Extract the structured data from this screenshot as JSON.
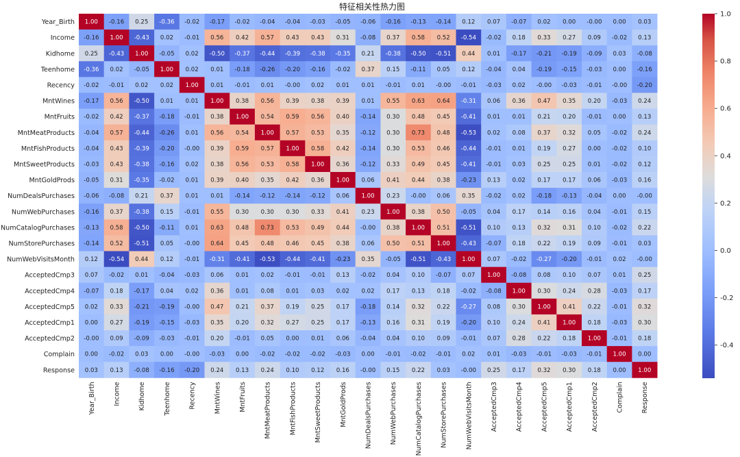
{
  "chart_data": {
    "type": "heatmap",
    "title": "特征相关性热力图",
    "labels": [
      "Year_Birth",
      "Income",
      "Kidhome",
      "Teenhome",
      "Recency",
      "MntWines",
      "MntFruits",
      "MntMeatProducts",
      "MntFishProducts",
      "MntSweetProducts",
      "MntGoldProds",
      "NumDealsPurchases",
      "NumWebPurchases",
      "NumCatalogPurchases",
      "NumStorePurchases",
      "NumWebVisitsMonth",
      "AcceptedCmp3",
      "AcceptedCmp4",
      "AcceptedCmp5",
      "AcceptedCmp1",
      "AcceptedCmp2",
      "Complain",
      "Response"
    ],
    "matrix": [
      [
        "1.00",
        "-0.16",
        "0.25",
        "-0.36",
        "-0.02",
        "-0.17",
        "-0.02",
        "-0.04",
        "-0.04",
        "-0.03",
        "-0.05",
        "-0.06",
        "-0.16",
        "-0.13",
        "-0.14",
        "0.12",
        "0.07",
        "-0.07",
        "0.02",
        "0.00",
        "-0.00",
        "0.00",
        "0.03"
      ],
      [
        "-0.16",
        "1.00",
        "-0.43",
        "0.02",
        "-0.01",
        "0.56",
        "0.42",
        "0.57",
        "0.43",
        "0.43",
        "0.31",
        "-0.08",
        "0.37",
        "0.58",
        "0.52",
        "-0.54",
        "-0.02",
        "0.18",
        "0.33",
        "0.27",
        "0.09",
        "-0.02",
        "0.13"
      ],
      [
        "0.25",
        "-0.43",
        "1.00",
        "-0.05",
        "0.02",
        "-0.50",
        "-0.37",
        "-0.44",
        "-0.39",
        "-0.38",
        "-0.35",
        "0.21",
        "-0.38",
        "-0.50",
        "-0.51",
        "0.44",
        "0.01",
        "-0.17",
        "-0.21",
        "-0.19",
        "-0.09",
        "0.03",
        "-0.08"
      ],
      [
        "-0.36",
        "0.02",
        "-0.05",
        "1.00",
        "0.02",
        "0.01",
        "-0.18",
        "-0.26",
        "-0.20",
        "-0.16",
        "-0.02",
        "0.37",
        "0.15",
        "-0.11",
        "0.05",
        "0.12",
        "-0.04",
        "0.04",
        "-0.19",
        "-0.15",
        "-0.03",
        "0.00",
        "-0.16"
      ],
      [
        "-0.02",
        "-0.01",
        "0.02",
        "0.02",
        "1.00",
        "0.01",
        "-0.01",
        "0.01",
        "-0.00",
        "0.02",
        "0.01",
        "0.01",
        "-0.01",
        "0.01",
        "-0.00",
        "-0.01",
        "-0.03",
        "0.02",
        "-0.00",
        "-0.03",
        "-0.01",
        "-0.00",
        "-0.20"
      ],
      [
        "-0.17",
        "0.56",
        "-0.50",
        "0.01",
        "0.01",
        "1.00",
        "0.38",
        "0.56",
        "0.39",
        "0.38",
        "0.39",
        "0.01",
        "0.55",
        "0.63",
        "0.64",
        "-0.31",
        "0.06",
        "0.36",
        "0.47",
        "0.35",
        "0.20",
        "-0.03",
        "0.24"
      ],
      [
        "-0.02",
        "0.42",
        "-0.37",
        "-0.18",
        "-0.01",
        "0.38",
        "1.00",
        "0.54",
        "0.59",
        "0.56",
        "0.40",
        "-0.14",
        "0.30",
        "0.48",
        "0.45",
        "-0.41",
        "0.01",
        "0.01",
        "0.21",
        "0.20",
        "-0.01",
        "0.00",
        "0.13"
      ],
      [
        "-0.04",
        "0.57",
        "-0.44",
        "-0.26",
        "0.01",
        "0.56",
        "0.54",
        "1.00",
        "0.57",
        "0.53",
        "0.35",
        "-0.12",
        "0.30",
        "0.73",
        "0.48",
        "-0.53",
        "0.02",
        "0.08",
        "0.37",
        "0.32",
        "0.05",
        "-0.02",
        "0.24"
      ],
      [
        "-0.04",
        "0.43",
        "-0.39",
        "-0.20",
        "-0.00",
        "0.39",
        "0.59",
        "0.57",
        "1.00",
        "0.58",
        "0.42",
        "-0.14",
        "0.30",
        "0.53",
        "0.46",
        "-0.44",
        "-0.01",
        "0.01",
        "0.19",
        "0.27",
        "0.00",
        "-0.02",
        "0.10"
      ],
      [
        "-0.03",
        "0.43",
        "-0.38",
        "-0.16",
        "0.02",
        "0.38",
        "0.56",
        "0.53",
        "0.58",
        "1.00",
        "0.36",
        "-0.12",
        "0.33",
        "0.49",
        "0.45",
        "-0.41",
        "-0.01",
        "0.03",
        "0.25",
        "0.25",
        "0.01",
        "-0.02",
        "0.12"
      ],
      [
        "-0.05",
        "0.31",
        "-0.35",
        "-0.02",
        "0.01",
        "0.39",
        "0.40",
        "0.35",
        "0.42",
        "0.36",
        "1.00",
        "0.06",
        "0.41",
        "0.44",
        "0.38",
        "-0.23",
        "0.13",
        "0.02",
        "0.17",
        "0.17",
        "0.06",
        "-0.03",
        "0.16"
      ],
      [
        "-0.06",
        "-0.08",
        "0.21",
        "0.37",
        "0.01",
        "0.01",
        "-0.14",
        "-0.12",
        "-0.14",
        "-0.12",
        "0.06",
        "1.00",
        "0.23",
        "-0.00",
        "0.06",
        "0.35",
        "-0.02",
        "0.02",
        "-0.18",
        "-0.13",
        "-0.04",
        "0.00",
        "-0.00"
      ],
      [
        "-0.16",
        "0.37",
        "-0.38",
        "0.15",
        "-0.01",
        "0.55",
        "0.30",
        "0.30",
        "0.30",
        "0.33",
        "0.41",
        "0.23",
        "1.00",
        "0.38",
        "0.50",
        "-0.05",
        "0.04",
        "0.17",
        "0.14",
        "0.16",
        "0.04",
        "-0.01",
        "0.15"
      ],
      [
        "-0.13",
        "0.58",
        "-0.50",
        "-0.11",
        "0.01",
        "0.63",
        "0.48",
        "0.73",
        "0.53",
        "0.49",
        "0.44",
        "-0.00",
        "0.38",
        "1.00",
        "0.51",
        "-0.51",
        "0.10",
        "0.13",
        "0.32",
        "0.31",
        "0.10",
        "-0.02",
        "0.22"
      ],
      [
        "-0.14",
        "0.52",
        "-0.51",
        "0.05",
        "-0.00",
        "0.64",
        "0.45",
        "0.48",
        "0.46",
        "0.45",
        "0.38",
        "0.06",
        "0.50",
        "0.51",
        "1.00",
        "-0.43",
        "-0.07",
        "0.18",
        "0.22",
        "0.19",
        "0.09",
        "-0.01",
        "0.03"
      ],
      [
        "0.12",
        "-0.54",
        "0.44",
        "0.12",
        "-0.01",
        "-0.31",
        "-0.41",
        "-0.53",
        "-0.44",
        "-0.41",
        "-0.23",
        "0.35",
        "-0.05",
        "-0.51",
        "-0.43",
        "1.00",
        "0.07",
        "-0.02",
        "-0.27",
        "-0.20",
        "-0.01",
        "0.02",
        "-0.00"
      ],
      [
        "0.07",
        "-0.02",
        "0.01",
        "-0.04",
        "-0.03",
        "0.06",
        "0.01",
        "0.02",
        "-0.01",
        "-0.01",
        "0.13",
        "-0.02",
        "0.04",
        "0.10",
        "-0.07",
        "0.07",
        "1.00",
        "-0.08",
        "0.08",
        "0.10",
        "0.07",
        "0.01",
        "0.25"
      ],
      [
        "-0.07",
        "0.18",
        "-0.17",
        "0.04",
        "0.02",
        "0.36",
        "0.01",
        "0.08",
        "0.01",
        "0.03",
        "0.02",
        "0.02",
        "0.17",
        "0.13",
        "0.18",
        "-0.02",
        "-0.08",
        "1.00",
        "0.30",
        "0.24",
        "0.28",
        "-0.03",
        "0.17"
      ],
      [
        "0.02",
        "0.33",
        "-0.21",
        "-0.19",
        "-0.00",
        "0.47",
        "0.21",
        "0.37",
        "0.19",
        "0.25",
        "0.17",
        "-0.18",
        "0.14",
        "0.32",
        "0.22",
        "-0.27",
        "0.08",
        "0.30",
        "1.00",
        "0.41",
        "0.22",
        "-0.01",
        "0.32"
      ],
      [
        "0.00",
        "0.27",
        "-0.19",
        "-0.15",
        "-0.03",
        "0.35",
        "0.20",
        "0.32",
        "0.27",
        "0.25",
        "0.17",
        "-0.13",
        "0.16",
        "0.31",
        "0.19",
        "-0.20",
        "0.10",
        "0.24",
        "0.41",
        "1.00",
        "0.18",
        "-0.03",
        "0.30"
      ],
      [
        "-0.00",
        "0.09",
        "-0.09",
        "-0.03",
        "-0.01",
        "0.20",
        "-0.01",
        "0.05",
        "0.00",
        "0.01",
        "0.06",
        "-0.04",
        "0.04",
        "0.10",
        "0.09",
        "-0.01",
        "0.07",
        "0.28",
        "0.22",
        "0.18",
        "1.00",
        "-0.01",
        "0.18"
      ],
      [
        "0.00",
        "-0.02",
        "0.03",
        "0.00",
        "-0.00",
        "-0.03",
        "0.00",
        "-0.02",
        "-0.02",
        "-0.02",
        "-0.03",
        "0.00",
        "-0.01",
        "-0.02",
        "-0.01",
        "0.02",
        "0.01",
        "-0.03",
        "-0.01",
        "-0.03",
        "-0.01",
        "1.00",
        "0.00"
      ],
      [
        "0.03",
        "0.13",
        "-0.08",
        "-0.16",
        "-0.20",
        "0.24",
        "0.13",
        "0.24",
        "0.10",
        "0.12",
        "0.16",
        "-0.00",
        "0.15",
        "0.22",
        "0.03",
        "-0.00",
        "0.25",
        "0.17",
        "0.32",
        "0.30",
        "0.18",
        "0.00",
        "1.00"
      ]
    ],
    "colorbar": {
      "vmin": -0.54,
      "vmax": 1.0,
      "ticks": [
        "1.0",
        "0.8",
        "0.6",
        "0.4",
        "0.2",
        "0.0",
        "-0.2",
        "-0.4"
      ],
      "colormap": "coolwarm"
    },
    "colors": {
      "low": "#3b4cc0",
      "mid": "#dddddd",
      "high": "#b40426"
    }
  }
}
